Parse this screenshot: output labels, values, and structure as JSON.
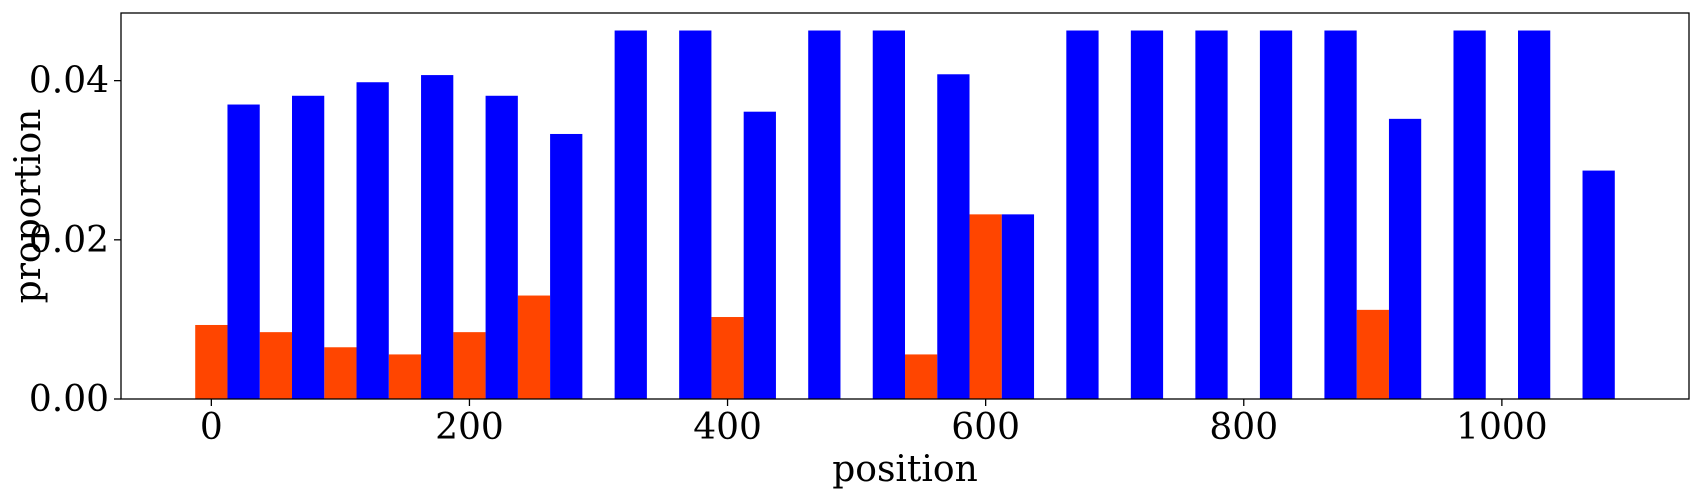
{
  "chart_data": {
    "type": "bar",
    "xlabel": "position",
    "ylabel": "proportion",
    "xlim": [
      -70,
      1145
    ],
    "ylim": [
      0,
      0.0485
    ],
    "x_ticks": [
      0,
      200,
      400,
      600,
      800,
      1000
    ],
    "x_tick_labels": [
      "0",
      "200",
      "400",
      "600",
      "800",
      "1000"
    ],
    "y_ticks": [
      0.0,
      0.02,
      0.04
    ],
    "y_tick_labels": [
      "0.00",
      "0.02",
      "0.04"
    ],
    "bar_width": 25,
    "grid": false,
    "series": [
      {
        "color": "#ff4500",
        "x": [
          0,
          50,
          100,
          150,
          200,
          250,
          400,
          550,
          600,
          900
        ],
        "values": [
          0.0093,
          0.0084,
          0.0065,
          0.0056,
          0.0084,
          0.013,
          0.0103,
          0.0056,
          0.0232,
          0.0112
        ]
      },
      {
        "color": "#0000ff",
        "x": [
          25,
          75,
          125,
          175,
          225,
          275,
          325,
          375,
          425,
          475,
          525,
          575,
          625,
          675,
          725,
          775,
          825,
          875,
          925,
          975,
          1025,
          1075
        ],
        "values": [
          0.037,
          0.0381,
          0.0398,
          0.0407,
          0.0381,
          0.0333,
          0.0463,
          0.0463,
          0.0361,
          0.0463,
          0.0463,
          0.0408,
          0.0232,
          0.0463,
          0.0463,
          0.0463,
          0.0463,
          0.0463,
          0.0352,
          0.0463,
          0.0463,
          0.0287
        ]
      }
    ]
  }
}
